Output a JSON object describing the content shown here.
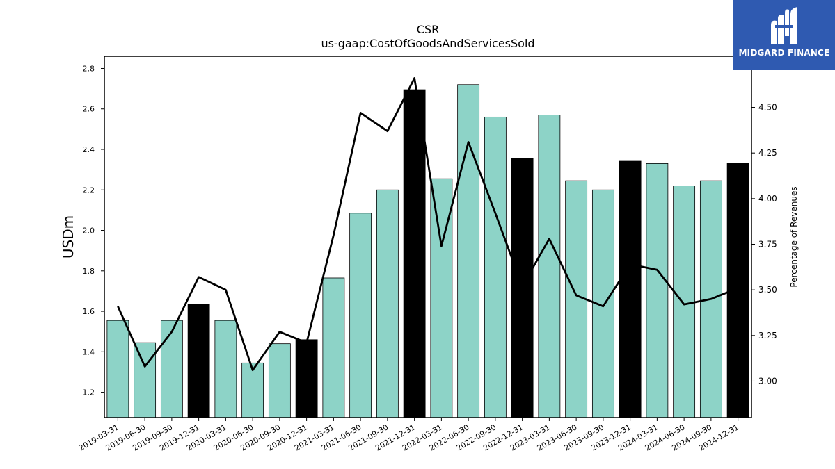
{
  "chart_data": {
    "type": "bar",
    "title": "CSR",
    "subtitle": "us-gaap:CostOfGoodsAndServicesSold",
    "ylabel": "USDm",
    "y2label": "Percentage of Revenues",
    "ylim": [
      1.075,
      2.86
    ],
    "y2lim": [
      2.8,
      4.78
    ],
    "yticks": [
      1.2,
      1.4,
      1.6,
      1.8,
      2.0,
      2.2,
      2.4,
      2.6,
      2.8
    ],
    "y2ticks": [
      3.0,
      3.25,
      3.5,
      3.75,
      4.0,
      4.25,
      4.5
    ],
    "categories": [
      "2019-03-31",
      "2019-06-30",
      "2019-09-30",
      "2019-12-31",
      "2020-03-31",
      "2020-06-30",
      "2020-09-30",
      "2020-12-31",
      "2021-03-31",
      "2021-06-30",
      "2021-09-30",
      "2021-12-31",
      "2022-03-31",
      "2022-06-30",
      "2022-09-30",
      "2022-12-31",
      "2023-03-31",
      "2023-06-30",
      "2023-09-30",
      "2023-12-31",
      "2024-03-31",
      "2024-06-30",
      "2024-09-30",
      "2024-12-31"
    ],
    "series": [
      {
        "kind": "bar",
        "values": [
          1.555,
          1.445,
          1.555,
          1.635,
          1.555,
          1.345,
          1.44,
          1.46,
          1.765,
          2.085,
          2.2,
          2.695,
          2.255,
          2.72,
          2.56,
          2.355,
          2.57,
          2.245,
          2.2,
          2.345,
          2.33,
          2.22,
          2.245,
          2.33
        ],
        "highlight": [
          false,
          false,
          false,
          true,
          false,
          false,
          false,
          true,
          false,
          false,
          false,
          true,
          false,
          false,
          false,
          true,
          false,
          false,
          false,
          true,
          false,
          false,
          false,
          true
        ],
        "color": "#8dd3c7",
        "highlight_color": "#000000"
      },
      {
        "kind": "line",
        "axis": "right",
        "values": [
          3.41,
          3.08,
          3.27,
          3.57,
          3.5,
          3.06,
          3.27,
          3.21,
          3.8,
          4.47,
          4.37,
          4.66,
          3.74,
          4.31,
          3.92,
          3.52,
          3.78,
          3.47,
          3.41,
          3.64,
          3.61,
          3.42,
          3.45,
          3.51
        ],
        "color": "#000000"
      }
    ],
    "grid": false
  },
  "logo": {
    "text": "MIDGARD FINANCE",
    "color": "#2f5ab1"
  }
}
